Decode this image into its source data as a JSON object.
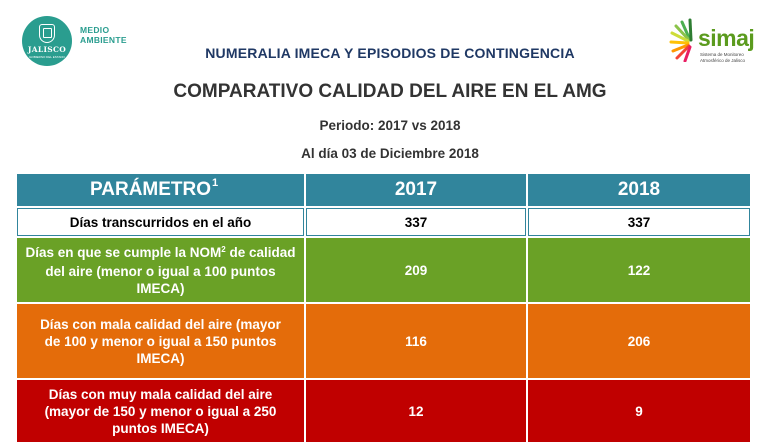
{
  "header": {
    "left_logo": {
      "seal_text": "JALISCO",
      "seal_subtext": "GOBIERNO DEL ESTADO",
      "label_line1": "MEDIO",
      "label_line2": "AMBIENTE",
      "color": "#2a9d8f"
    },
    "right_logo": {
      "word": "simaj",
      "tagline_line1": "Sistema de Monitoreo",
      "tagline_line2": "Atmosférico de Jalisco",
      "color": "#5b9b1e"
    },
    "title_top": "NUMERALIA IMECA Y EPISODIOS DE CONTINGENCIA",
    "title_main": "COMPARATIVO CALIDAD DEL AIRE EN EL AMG",
    "period": "Periodo: 2017 vs 2018",
    "date": "Al día 03 de Diciembre 2018"
  },
  "table": {
    "header": {
      "param_label": "PARÁMETRO",
      "param_sup": "1",
      "year_a": "2017",
      "year_b": "2018"
    },
    "rows": [
      {
        "label": "Días transcurridos en el año",
        "value_2017": "337",
        "value_2018": "337",
        "color": "#ffffff"
      },
      {
        "label_part1": "Días en que se cumple la NOM",
        "label_sup": "2",
        "label_part2": " de calidad del aire (menor o igual a 100 puntos IMECA)",
        "value_2017": "209",
        "value_2018": "122",
        "color": "#6aa126"
      },
      {
        "label": "Días con mala calidad del aire (mayor de 100 y menor o igual a 150 puntos IMECA)",
        "value_2017": "116",
        "value_2018": "206",
        "color": "#e46c0a"
      },
      {
        "label": "Días con muy mala calidad del aire (mayor de 150 y menor o igual a 250 puntos IMECA)",
        "value_2017": "12",
        "value_2018": "9",
        "color": "#c00000"
      }
    ],
    "header_color": "#31859c"
  }
}
